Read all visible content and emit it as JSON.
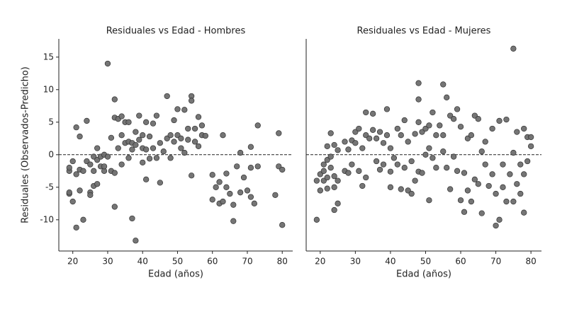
{
  "chart_data": [
    {
      "type": "scatter",
      "title": "Residuales vs Edad - Hombres",
      "xlabel": "Edad (años)",
      "ylabel": "Residuales (Observados-Predicho)",
      "color": "#6e6e6e",
      "edgecolor": "#333333",
      "hline": 0,
      "xlim": [
        16,
        83
      ],
      "xticks": [
        20,
        30,
        40,
        50,
        60,
        70,
        80
      ],
      "ylim": [
        -14.8,
        17.8
      ],
      "yticks": [
        -10,
        -5,
        0,
        5,
        10,
        15
      ],
      "x": [
        19,
        19,
        19,
        19,
        20,
        20,
        21,
        21,
        21,
        22,
        22,
        22,
        23,
        23,
        24,
        24,
        25,
        25,
        25,
        26,
        26,
        26,
        27,
        27,
        27,
        28,
        28,
        29,
        29,
        29,
        30,
        30,
        31,
        31,
        32,
        32,
        32,
        32,
        33,
        33,
        34,
        34,
        34,
        35,
        35,
        36,
        36,
        36,
        37,
        37,
        37,
        38,
        38,
        38,
        39,
        39,
        40,
        40,
        40,
        41,
        41,
        41,
        42,
        42,
        43,
        43,
        44,
        44,
        45,
        45,
        46,
        47,
        47,
        48,
        48,
        49,
        49,
        50,
        50,
        51,
        51,
        52,
        52,
        53,
        53,
        54,
        54,
        54,
        55,
        55,
        56,
        56,
        57,
        57,
        58,
        60,
        60,
        61,
        62,
        62,
        63,
        63,
        64,
        64,
        65,
        66,
        66,
        67,
        68,
        68,
        69,
        70,
        71,
        71,
        71,
        72,
        73,
        73,
        78,
        79,
        79,
        80,
        80
      ],
      "values": [
        -6,
        -5.8,
        -2.5,
        -2,
        -7.2,
        -1,
        4.2,
        -11.2,
        -3,
        2.8,
        -2.3,
        -5.5,
        -10,
        -2.5,
        5.2,
        -1,
        -1.5,
        -5.8,
        -6.2,
        -0.3,
        -4.8,
        -2.5,
        1,
        -4.5,
        -0.8,
        -1.8,
        -0.3,
        0,
        -2.5,
        -1.8,
        14,
        -0.3,
        2.6,
        -2.5,
        8.5,
        5.7,
        -8,
        -2.8,
        1,
        5.5,
        5.9,
        3,
        -1.5,
        1.8,
        5,
        2,
        -0.5,
        5,
        -9.8,
        1.8,
        0.8,
        -13.2,
        3.5,
        1.5,
        2.3,
        6,
        3,
        -1.2,
        1,
        -3.8,
        5,
        0.8,
        2.8,
        -0.6,
        4.8,
        1,
        6,
        -0.5,
        -4.3,
        1.8,
        0.5,
        9,
        2.5,
        3,
        -0.5,
        5.3,
        2,
        7,
        3,
        2.5,
        1,
        6.9,
        0.3,
        4,
        2.3,
        9,
        8.3,
        -3.2,
        4,
        2,
        5.8,
        1.3,
        4.5,
        3,
        2.9,
        -3.1,
        -6.9,
        -5,
        -7.5,
        -4.2,
        3,
        -7.2,
        -5,
        -2.9,
        -6,
        -10.2,
        -7.7,
        -1.8,
        0.3,
        -5.8,
        -3.5,
        -5.5,
        1.2,
        -2,
        -6.5,
        -7.5,
        4.5,
        -1.8,
        -6.2,
        3.3,
        -1.8,
        -2.3,
        -10.8
      ]
    },
    {
      "type": "scatter",
      "title": "Residuales vs Edad - Mujeres",
      "xlabel": "Edad (años)",
      "color": "#6e6e6e",
      "edgecolor": "#333333",
      "hline": 0,
      "xlim": [
        16,
        83
      ],
      "xticks": [
        20,
        30,
        40,
        50,
        60,
        70,
        80
      ],
      "ylim": [
        -14.8,
        17.8
      ],
      "x": [
        19,
        19,
        20,
        20,
        21,
        21,
        21,
        22,
        22,
        22,
        22,
        23,
        23,
        23,
        24,
        24,
        24,
        24,
        25,
        25,
        25,
        27,
        27,
        28,
        28,
        29,
        29,
        30,
        30,
        31,
        31,
        32,
        32,
        33,
        33,
        33,
        34,
        35,
        35,
        36,
        36,
        37,
        37,
        38,
        38,
        39,
        39,
        40,
        40,
        40,
        41,
        42,
        42,
        43,
        43,
        44,
        44,
        45,
        45,
        46,
        46,
        47,
        47,
        48,
        48,
        48,
        48,
        49,
        49,
        50,
        50,
        51,
        51,
        51,
        52,
        52,
        53,
        53,
        54,
        55,
        55,
        55,
        56,
        56,
        57,
        57,
        58,
        58,
        59,
        59,
        60,
        60,
        61,
        61,
        62,
        62,
        63,
        63,
        64,
        64,
        65,
        65,
        66,
        66,
        67,
        67,
        68,
        69,
        69,
        70,
        70,
        71,
        71,
        72,
        72,
        73,
        73,
        74,
        75,
        75,
        75,
        76,
        76,
        77,
        77,
        78,
        78,
        78,
        79,
        79,
        80,
        80
      ],
      "values": [
        -10,
        -4,
        -5.5,
        -3,
        -4,
        -1.5,
        -2.5,
        -5.2,
        -3.5,
        1.3,
        -0.8,
        3.3,
        -2,
        -0.3,
        -8.5,
        1.5,
        -3.3,
        -5,
        -7.5,
        0.7,
        -4,
        -2.5,
        2,
        -2.8,
        0.8,
        2.2,
        -1.5,
        3.5,
        1.8,
        -2.5,
        4,
        -4.8,
        1,
        6.5,
        3,
        -3.5,
        2.5,
        6.3,
        3.8,
        -1,
        2.5,
        -2.3,
        3.5,
        1.8,
        -1.5,
        7,
        3,
        -5,
        1,
        -2.6,
        -0.5,
        4,
        -1.5,
        3,
        -5.3,
        5.3,
        -2,
        -5.5,
        2,
        -6,
        -1,
        3.2,
        -4,
        11,
        8.5,
        5,
        -2.6,
        3.5,
        -2.8,
        4,
        0,
        4.5,
        -7,
        1,
        6.5,
        -0.5,
        3,
        -2,
        4.5,
        10.8,
        3,
        0.5,
        8.8,
        -2,
        6,
        -5.3,
        -0.3,
        5.5,
        7,
        -2.5,
        4.3,
        -7,
        -2.8,
        -8.8,
        2.5,
        -5.5,
        3,
        -7.2,
        6,
        -3.8,
        5.5,
        -4.5,
        0.5,
        -9,
        2,
        -1.5,
        -4.8,
        4,
        -3,
        -10.9,
        -6,
        5.2,
        -10,
        -1.5,
        -5,
        5.4,
        -7.2,
        -3,
        16.3,
        0.3,
        -7.2,
        3.5,
        -4.5,
        -6,
        -1.5,
        4,
        -8.9,
        -3,
        2.7,
        -1,
        1.3,
        2.7
      ]
    }
  ]
}
